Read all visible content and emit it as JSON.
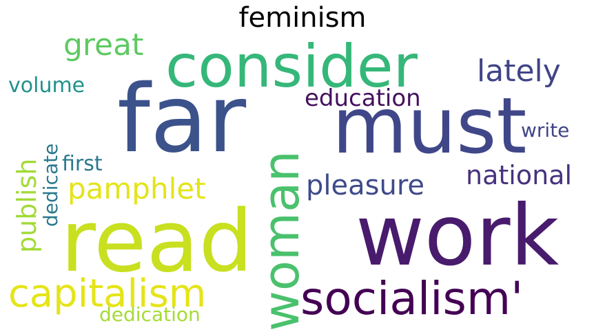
{
  "title": "feminism",
  "words": [
    {
      "text": "far",
      "color": "#3b528b"
    },
    {
      "text": "must",
      "color": "#404789"
    },
    {
      "text": "consider",
      "color": "#35b779"
    },
    {
      "text": "read",
      "color": "#c8e020"
    },
    {
      "text": "work",
      "color": "#481b6d"
    },
    {
      "text": "woman",
      "color": "#4ac16d"
    },
    {
      "text": "socialism'",
      "color": "#440154"
    },
    {
      "text": "capitalism",
      "color": "#e5e419"
    },
    {
      "text": "lately",
      "color": "#414487"
    },
    {
      "text": "great",
      "color": "#5ec962"
    },
    {
      "text": "education",
      "color": "#440f5e"
    },
    {
      "text": "pleasure",
      "color": "#3e4a89"
    },
    {
      "text": "national",
      "color": "#46327e"
    },
    {
      "text": "pamphlet",
      "color": "#e3e418"
    },
    {
      "text": "volume",
      "color": "#21918c"
    },
    {
      "text": "publish",
      "color": "#a2da37"
    },
    {
      "text": "dedicate",
      "color": "#2a788e"
    },
    {
      "text": "first",
      "color": "#2a788e"
    },
    {
      "text": "write",
      "color": "#414487"
    },
    {
      "text": "dedication",
      "color": "#a5db36"
    }
  ]
}
